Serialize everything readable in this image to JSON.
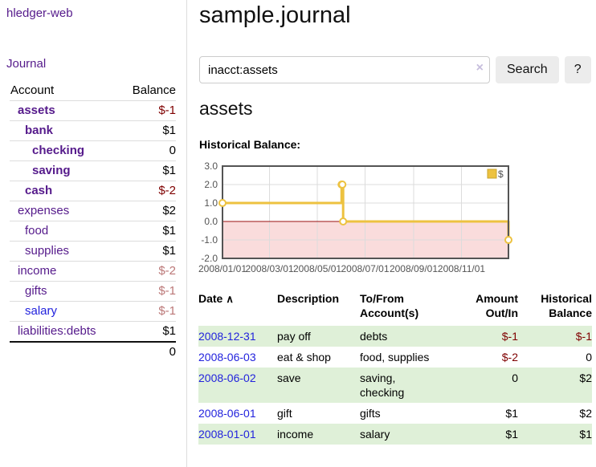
{
  "app": {
    "brand": "hledger-web"
  },
  "colors": {
    "accent_purple": "#551a8b",
    "link_blue": "#2222dd",
    "negative_strong": "#7f0000",
    "negative_muted": "#bb7777",
    "row_highlight_green": "#dff0d8",
    "chart_line_gold": "#edc240",
    "chart_legend_border": "#c9a42e",
    "chart_negative_fill": "#fadcdc",
    "chart_zero_line": "#991111",
    "chart_border": "#545454",
    "chart_grid": "#dcdcdc",
    "chart_axis_text": "#545454"
  },
  "sidebar": {
    "nav": [
      {
        "label": "Journal"
      }
    ],
    "accounts_table": {
      "headers": {
        "account": "Account",
        "balance": "Balance"
      },
      "rows": [
        {
          "name": "assets",
          "depth": 1,
          "bold": true,
          "link_color": "purple",
          "balance": "$-1",
          "balance_style": "neg-strong"
        },
        {
          "name": "bank",
          "depth": 2,
          "bold": true,
          "link_color": "purple",
          "balance": "$1",
          "balance_style": "pos-strong"
        },
        {
          "name": "checking",
          "depth": 3,
          "bold": true,
          "link_color": "purple",
          "balance": "0",
          "balance_style": "pos-strong"
        },
        {
          "name": "saving",
          "depth": 3,
          "bold": true,
          "link_color": "purple",
          "balance": "$1",
          "balance_style": "pos-strong"
        },
        {
          "name": "cash",
          "depth": 2,
          "bold": true,
          "link_color": "purple",
          "balance": "$-2",
          "balance_style": "neg-strong"
        },
        {
          "name": "expenses",
          "depth": 1,
          "bold": false,
          "link_color": "purple",
          "balance": "$2",
          "balance_style": "pos"
        },
        {
          "name": "food",
          "depth": 2,
          "bold": false,
          "link_color": "purple",
          "balance": "$1",
          "balance_style": "pos"
        },
        {
          "name": "supplies",
          "depth": 2,
          "bold": false,
          "link_color": "purple",
          "balance": "$1",
          "balance_style": "pos"
        },
        {
          "name": "income",
          "depth": 1,
          "bold": false,
          "link_color": "purple",
          "balance": "$-2",
          "balance_style": "neg-muted"
        },
        {
          "name": "gifts",
          "depth": 2,
          "bold": false,
          "link_color": "purple",
          "balance": "$-1",
          "balance_style": "neg-muted"
        },
        {
          "name": "salary",
          "depth": 2,
          "bold": false,
          "link_color": "blue",
          "balance": "$-1",
          "balance_style": "neg-muted"
        },
        {
          "name": "liabilities:debts",
          "depth": 1,
          "bold": false,
          "link_color": "purple",
          "balance": "$1",
          "balance_style": "pos"
        }
      ],
      "total": "0"
    }
  },
  "header": {
    "title": "sample.journal"
  },
  "search": {
    "value": "inacct:assets",
    "clear_icon": "×",
    "search_label": "Search",
    "help_label": "?"
  },
  "account_page": {
    "heading": "assets",
    "chart_label": "Historical Balance:"
  },
  "chart_data": {
    "type": "line",
    "step": true,
    "title": "Historical Balance",
    "legend": {
      "label": "$",
      "position": "top-right"
    },
    "ylim": [
      -2,
      3
    ],
    "xlim_days": [
      0,
      365
    ],
    "y_ticks": [
      3,
      2,
      1,
      0,
      -1,
      -2
    ],
    "y_tick_labels": [
      "3.0",
      "2.0",
      "1.0",
      "0.0",
      "-1.0",
      "-2.0"
    ],
    "x_tick_days": [
      0,
      60,
      121,
      182,
      244,
      305
    ],
    "x_tick_labels": [
      "2008/01/01",
      "2008/03/01",
      "2008/05/01",
      "2008/07/01",
      "2008/09/01",
      "2008/11/01"
    ],
    "grid": true,
    "series": [
      {
        "name": "$",
        "color": "#edc240",
        "points": [
          {
            "date": "2008-01-01",
            "day": 0,
            "value": 1
          },
          {
            "date": "2008-06-01",
            "day": 152,
            "value": 2
          },
          {
            "date": "2008-06-02",
            "day": 153,
            "value": 2
          },
          {
            "date": "2008-06-03",
            "day": 154,
            "value": 0
          },
          {
            "date": "2008-12-31",
            "day": 365,
            "value": -1
          }
        ]
      }
    ],
    "negative_region_color": "#fadcdc",
    "zero_line_color": "#991111"
  },
  "register": {
    "headers": [
      {
        "label": "Date",
        "align": "left",
        "sort_icon": "∧"
      },
      {
        "label": "Description",
        "align": "left"
      },
      {
        "label": "To/From\nAccount(s)",
        "align": "left"
      },
      {
        "label": "Amount\nOut/In",
        "align": "right"
      },
      {
        "label": "Historical\nBalance",
        "align": "right"
      }
    ],
    "rows": [
      {
        "date": "2008-12-31",
        "description": "pay off",
        "accounts": "debts",
        "amount": "$-1",
        "amount_neg": true,
        "balance": "$-1",
        "balance_neg": true,
        "highlight": true
      },
      {
        "date": "2008-06-03",
        "description": "eat & shop",
        "accounts": "food, supplies",
        "amount": "$-2",
        "amount_neg": true,
        "balance": "0",
        "balance_neg": false,
        "highlight": false
      },
      {
        "date": "2008-06-02",
        "description": "save",
        "accounts": "saving,\nchecking",
        "amount": "0",
        "amount_neg": false,
        "balance": "$2",
        "balance_neg": false,
        "highlight": true
      },
      {
        "date": "2008-06-01",
        "description": "gift",
        "accounts": "gifts",
        "amount": "$1",
        "amount_neg": false,
        "balance": "$2",
        "balance_neg": false,
        "highlight": false
      },
      {
        "date": "2008-01-01",
        "description": "income",
        "accounts": "salary",
        "amount": "$1",
        "amount_neg": false,
        "balance": "$1",
        "balance_neg": false,
        "highlight": true
      }
    ]
  }
}
